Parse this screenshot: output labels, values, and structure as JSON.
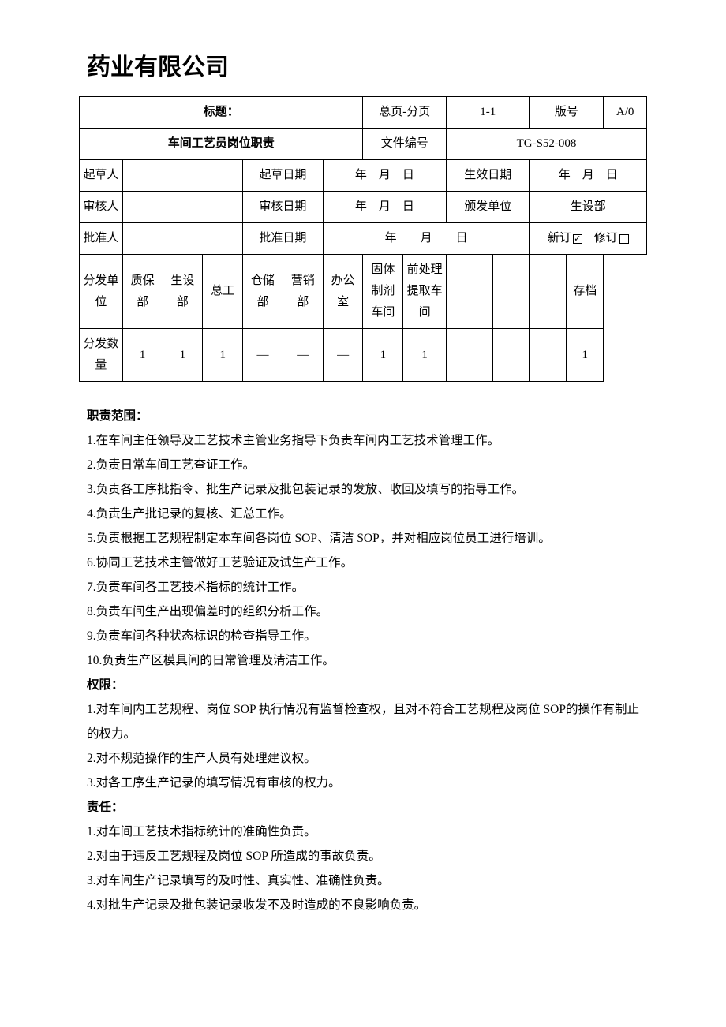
{
  "company": "药业有限公司",
  "header": {
    "title_label": "标题：",
    "page_label": "总页-分页",
    "page_val": "1-1",
    "version_label": "版号",
    "version_val": "A/0",
    "doc_title": "车间工艺员岗位职责",
    "docno_label": "文件编号",
    "docno_val": "TG-S52-008"
  },
  "meta_rows": {
    "drafter_label": "起草人",
    "drafter_val": "",
    "draft_date_label": "起草日期",
    "draft_date_val": "年　月　日",
    "effective_label": "生效日期",
    "effective_val": "年　月　日",
    "reviewer_label": "审核人",
    "reviewer_val": "",
    "review_date_label": "审核日期",
    "review_date_val": "年　月　日",
    "issuer_label": "颁发单位",
    "issuer_val": "生设部",
    "approver_label": "批准人",
    "approver_val": "",
    "approve_date_label": "批准日期",
    "approve_date_val": "年　　月　　日",
    "new_label": "新订",
    "revise_label": "修订"
  },
  "dist": {
    "unit_label": "分发单位",
    "qty_label": "分发数量",
    "cols": [
      "质保部",
      "生设部",
      "总工",
      "仓储部",
      "营销部",
      "办公室",
      "固体制剂车间",
      "前处理提取车间",
      "",
      "",
      "",
      "存档"
    ],
    "qtys": [
      "1",
      "1",
      "1",
      "—",
      "—",
      "—",
      "1",
      "1",
      "",
      "",
      "",
      "1"
    ]
  },
  "sections": {
    "duty_title": "职责范围：",
    "duties": [
      "1.在车间主任领导及工艺技术主管业务指导下负责车间内工艺技术管理工作。",
      "2.负责日常车间工艺查证工作。",
      "3.负责各工序批指令、批生产记录及批包装记录的发放、收回及填写的指导工作。",
      "4.负责生产批记录的复核、汇总工作。",
      "5.负责根据工艺规程制定本车间各岗位 SOP、清洁 SOP，并对相应岗位员工进行培训。",
      "6.协同工艺技术主管做好工艺验证及试生产工作。",
      "7.负责车间各工艺技术指标的统计工作。",
      "8.负责车间生产出现偏差时的组织分析工作。",
      "9.负责车间各种状态标识的检查指导工作。",
      "10.负责生产区模具间的日常管理及清洁工作。"
    ],
    "auth_title": "权限：",
    "auths": [
      "1.对车间内工艺规程、岗位 SOP 执行情况有监督检查权，且对不符合工艺规程及岗位 SOP的操作有制止的权力。",
      "2.对不规范操作的生产人员有处理建议权。",
      "3.对各工序生产记录的填写情况有审核的权力。"
    ],
    "resp_title": "责任：",
    "resps": [
      "1.对车间工艺技术指标统计的准确性负责。",
      "2.对由于违反工艺规程及岗位 SOP 所造成的事故负责。",
      "3.对车间生产记录填写的及时性、真实性、准确性负责。",
      "4.对批生产记录及批包装记录收发不及时造成的不良影响负责。"
    ]
  }
}
